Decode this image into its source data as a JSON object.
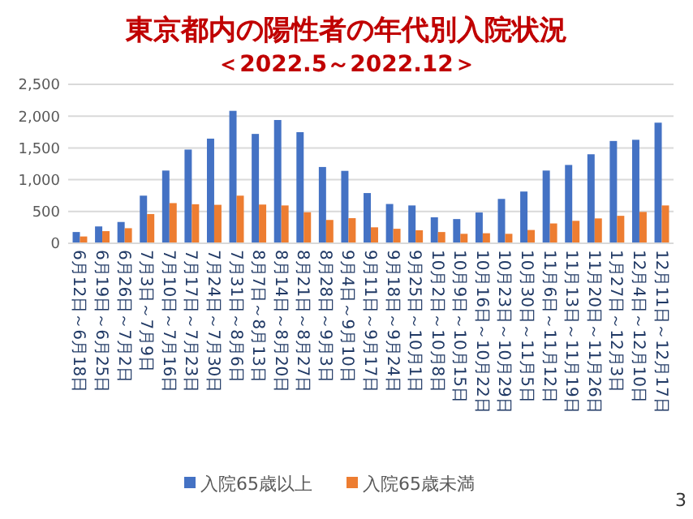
{
  "chart_data": {
    "type": "bar",
    "title": "東京都内の陽性者の年代別入院状況",
    "subtitle": "＜2022.5～2022.12＞",
    "categories": [
      "6月12日～6月18日",
      "6月19日～6月25日",
      "6月26日～7月2日",
      "7月3日～7月9日",
      "7月10日～7月16日",
      "7月17日～7月23日",
      "7月24日～7月30日",
      "7月31日～8月6日",
      "8月7日～8月13日",
      "8月14日～8月20日",
      "8月21日～8月27日",
      "8月28日～9月3日",
      "9月4日～9月10日",
      "9月11日～9月17日",
      "9月18日～9月24日",
      "9月25日～10月1日",
      "10月2日～10月8日",
      "10月9日～10月15日",
      "10月16日～10月22日",
      "10月23日～10月29日",
      "10月30日～11月5日",
      "11月6日～11月12日",
      "11月13日～11月19日",
      "11月20日～11月26日",
      "1月27日～12月3日",
      "12月4日～12月10日",
      "12月11日～12月17日"
    ],
    "series": [
      {
        "name": "入院65歳以上",
        "color": "#4472c4",
        "values": [
          177,
          265,
          335,
          749,
          1144,
          1474,
          1646,
          2083,
          1720,
          1939,
          1748,
          1200,
          1139,
          790,
          618,
          595,
          409,
          381,
          484,
          698,
          814,
          1144,
          1232,
          1400,
          1609,
          1628,
          1897
        ]
      },
      {
        "name": "入院65歳未満",
        "color": "#ed7d31",
        "values": [
          107,
          191,
          237,
          460,
          632,
          614,
          605,
          749,
          609,
          595,
          488,
          367,
          395,
          251,
          228,
          205,
          177,
          149,
          158,
          149,
          209,
          312,
          353,
          391,
          432,
          493,
          595
        ]
      }
    ],
    "ylim": [
      0,
      2500
    ],
    "yticks": [
      {
        "value": 0,
        "label": "0"
      },
      {
        "value": 500,
        "label": "500"
      },
      {
        "value": 1000,
        "label": "1,000"
      },
      {
        "value": 1500,
        "label": "1,500"
      },
      {
        "value": 2000,
        "label": "2,000"
      },
      {
        "value": 2500,
        "label": "2,500"
      }
    ],
    "grid": "y",
    "legend": "bottom",
    "annotations": [
      "3"
    ]
  }
}
